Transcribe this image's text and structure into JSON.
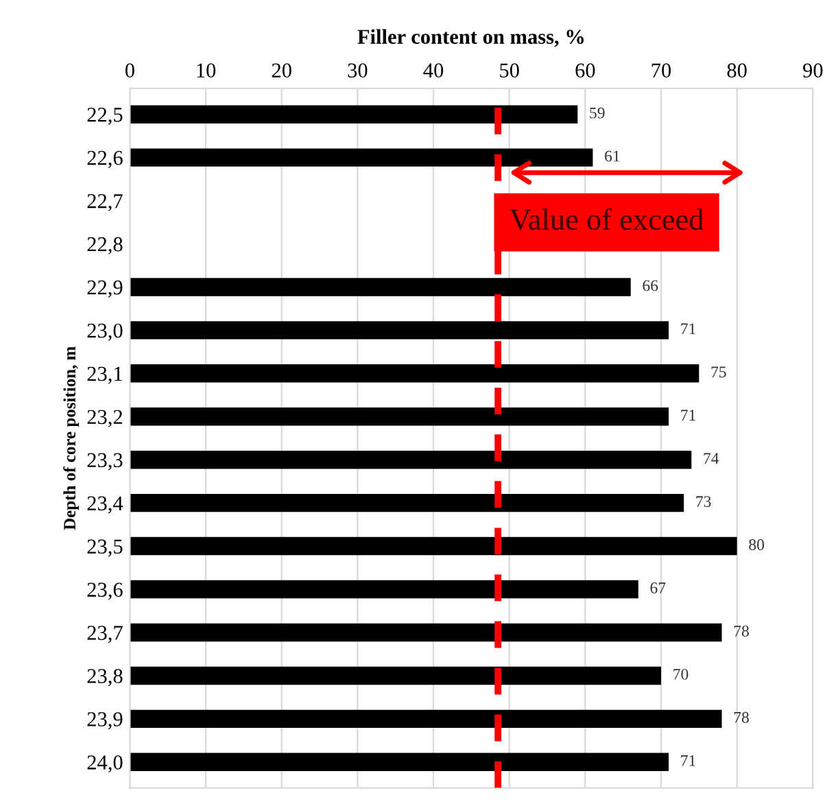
{
  "chart_data": {
    "type": "bar",
    "orientation": "horizontal",
    "xlabel": "Filler content on mass, %",
    "ylabel": "Depth of core position, m",
    "categories": [
      "22,5",
      "22,6",
      "22,7",
      "22,8",
      "22,9",
      "23,0",
      "23,1",
      "23,2",
      "23,3",
      "23,4",
      "23,5",
      "23,6",
      "23,7",
      "23,8",
      "23,9",
      "24,0"
    ],
    "values": [
      59,
      61,
      null,
      null,
      66,
      71,
      75,
      71,
      74,
      73,
      80,
      67,
      78,
      70,
      78,
      71
    ],
    "color": "#000000",
    "data_labels": true,
    "xlim": [
      0,
      90
    ],
    "xticks": [
      0,
      10,
      20,
      30,
      40,
      50,
      60,
      70,
      80,
      90
    ],
    "grid": "x",
    "ref_lines": [
      {
        "axis": "x",
        "value": 48.5,
        "color": "#ff0000",
        "line_style": "dashed"
      }
    ],
    "annotations": [
      "Value of exceed"
    ]
  }
}
